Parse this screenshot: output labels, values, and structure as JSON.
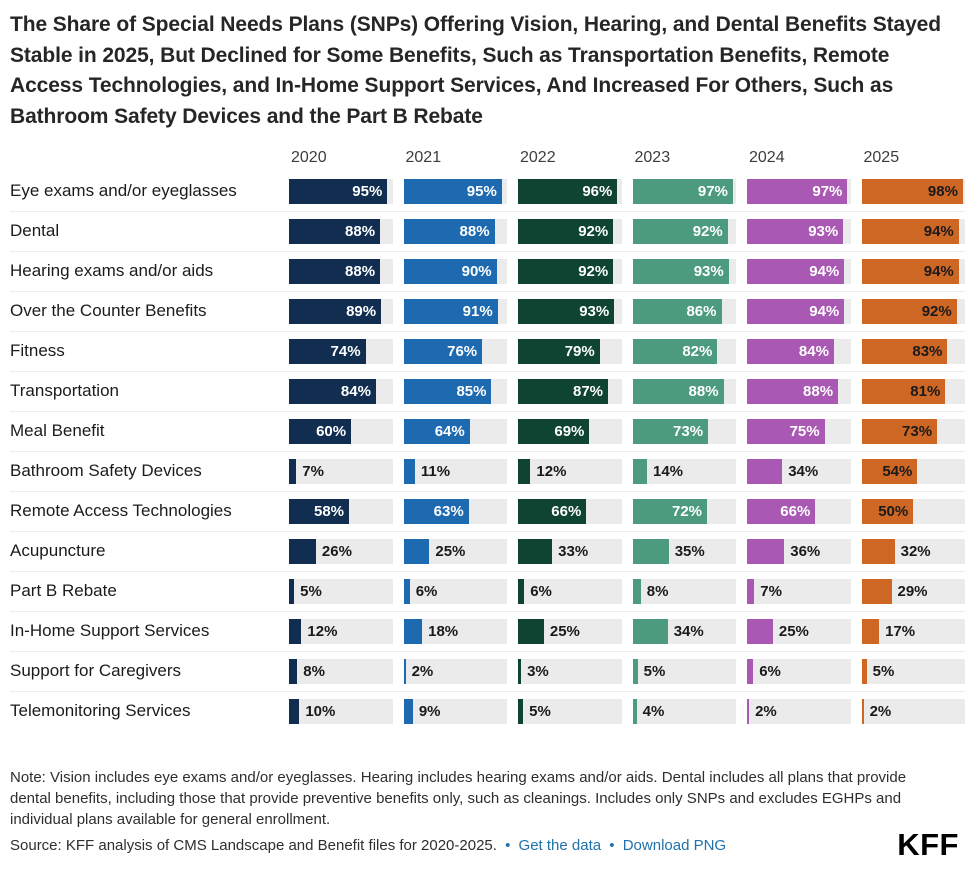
{
  "title": "The Share of Special Needs Plans (SNPs) Offering Vision, Hearing, and Dental Benefits Stayed Stable in 2025, But Declined for Some Benefits, Such as Transportation Benefits, Remote Access Technologies, and In-Home Support Services, And Increased For Others, Such as Bathroom Safety Devices and the Part B Rebate",
  "chart_data": {
    "type": "bar",
    "subtype": "horizontal-small-multiples",
    "value_format": "percent",
    "xlim": [
      0,
      100
    ],
    "label_inside_threshold": 40,
    "categories": [
      "Eye exams and/or eyeglasses",
      "Dental",
      "Hearing exams and/or aids",
      "Over the Counter Benefits",
      "Fitness",
      "Transportation",
      "Meal Benefit",
      "Bathroom Safety Devices",
      "Remote Access Technologies",
      "Acupuncture",
      "Part B Rebate",
      "In-Home Support Services",
      "Support for Caregivers",
      "Telemonitoring Services"
    ],
    "series": [
      {
        "name": "2020",
        "color": "#112e51",
        "label_color": "#ffffff",
        "values": [
          95,
          88,
          88,
          89,
          74,
          84,
          60,
          7,
          58,
          26,
          5,
          12,
          8,
          10
        ]
      },
      {
        "name": "2021",
        "color": "#1e6ab0",
        "label_color": "#ffffff",
        "values": [
          95,
          88,
          90,
          91,
          76,
          85,
          64,
          11,
          63,
          25,
          6,
          18,
          2,
          9
        ]
      },
      {
        "name": "2022",
        "color": "#0e4431",
        "label_color": "#ffffff",
        "values": [
          96,
          92,
          92,
          93,
          79,
          87,
          69,
          12,
          66,
          33,
          6,
          25,
          3,
          5
        ]
      },
      {
        "name": "2023",
        "color": "#4c9b7f",
        "label_color": "#ffffff",
        "values": [
          97,
          92,
          93,
          86,
          82,
          88,
          73,
          14,
          72,
          35,
          8,
          34,
          5,
          4
        ]
      },
      {
        "name": "2024",
        "color": "#a959b3",
        "label_color": "#ffffff",
        "values": [
          97,
          93,
          94,
          94,
          84,
          88,
          75,
          34,
          66,
          36,
          7,
          25,
          6,
          2
        ]
      },
      {
        "name": "2025",
        "color": "#ce6624",
        "label_color": "#1a1a1a",
        "values": [
          98,
          94,
          94,
          92,
          83,
          81,
          73,
          54,
          50,
          32,
          29,
          17,
          5,
          2
        ]
      }
    ]
  },
  "note": "Note: Vision includes eye exams and/or eyeglasses. Hearing includes hearing exams and/or aids. Dental includes all plans that provide dental benefits, including those that provide preventive benefits only, such as cleanings. Includes only SNPs and excludes EGHPs and individual plans available for general enrollment.",
  "source": {
    "text": "Source: KFF analysis of CMS Landscape and Benefit files for 2020-2025.",
    "separator": "•",
    "links": [
      "Get the data",
      "Download PNG"
    ]
  },
  "logo": "KFF",
  "colors": {
    "link": "#1f72ad",
    "track": "#ebebeb",
    "title_text": "#262626"
  }
}
